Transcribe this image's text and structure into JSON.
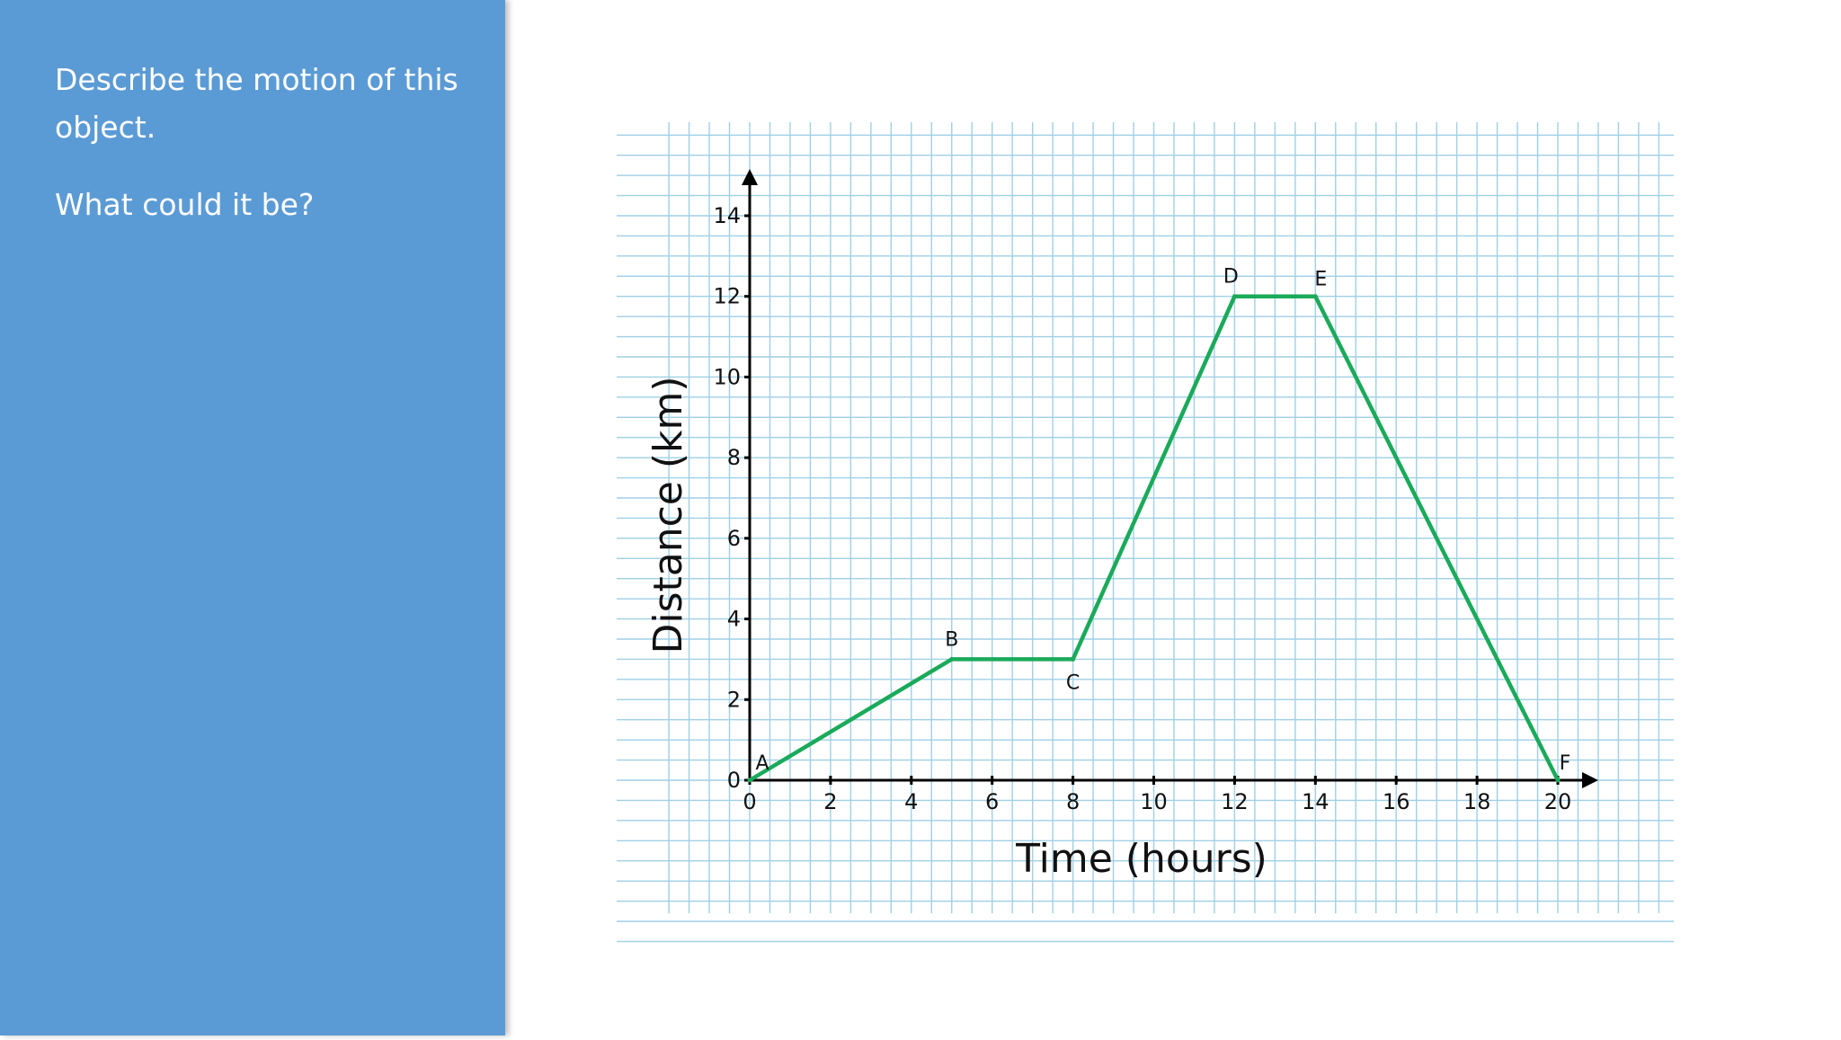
{
  "panel": {
    "question_1": "Describe the motion of this object.",
    "question_2": "What could it be?",
    "background": "#5b9bd5"
  },
  "chart_data": {
    "type": "line",
    "xlabel": "Time (hours)",
    "ylabel": "Distance (km)",
    "xlim": [
      0,
      20
    ],
    "ylim": [
      0,
      14
    ],
    "x_ticks": [
      0,
      2,
      4,
      6,
      8,
      10,
      12,
      14,
      16,
      18,
      20
    ],
    "y_ticks": [
      0,
      2,
      4,
      6,
      8,
      10,
      12,
      14
    ],
    "grid": true,
    "grid_color": "#9fcfe6",
    "line_color": "#1aaa5a",
    "points": [
      {
        "label": "A",
        "x": 0,
        "y": 0
      },
      {
        "label": "B",
        "x": 5,
        "y": 3
      },
      {
        "label": "C",
        "x": 8,
        "y": 3
      },
      {
        "label": "D",
        "x": 12,
        "y": 12
      },
      {
        "label": "E",
        "x": 14,
        "y": 12
      },
      {
        "label": "F",
        "x": 20,
        "y": 0
      }
    ]
  }
}
